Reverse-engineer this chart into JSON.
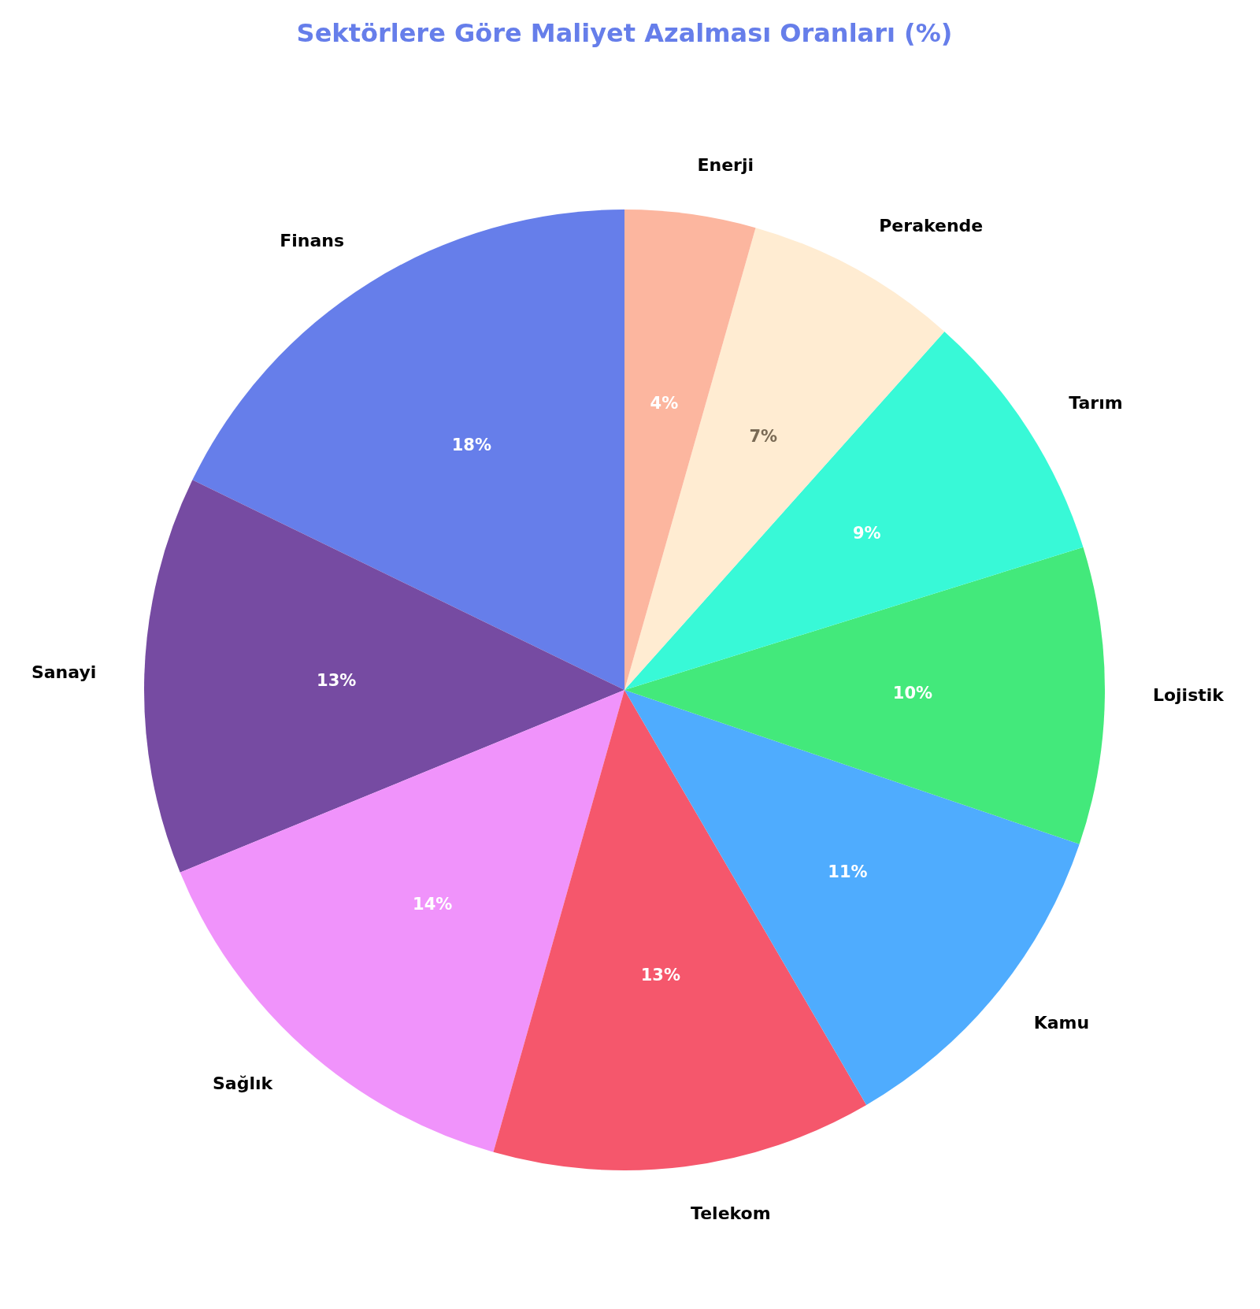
{
  "chart_data": {
    "type": "pie",
    "title": "Sektörlere Göre Maliyet Azalması Oranları (%)",
    "categories": [
      "Finans",
      "Sanayi",
      "Sağlık",
      "Telekom",
      "Kamu",
      "Lojistik",
      "Tarım",
      "Perakende",
      "Enerji"
    ],
    "values": [
      17.8,
      13.4,
      14.4,
      12.8,
      11.4,
      10.0,
      8.6,
      7.2,
      4.4
    ],
    "value_labels": [
      "18%",
      "13%",
      "14%",
      "13%",
      "11%",
      "10%",
      "9%",
      "7%",
      "4%"
    ],
    "colors": [
      "#667eea",
      "#764ba2",
      "#f093fb",
      "#f5576c",
      "#4facfe",
      "#43e97b",
      "#38f9d7",
      "#ffecd2",
      "#fcb69f"
    ]
  }
}
